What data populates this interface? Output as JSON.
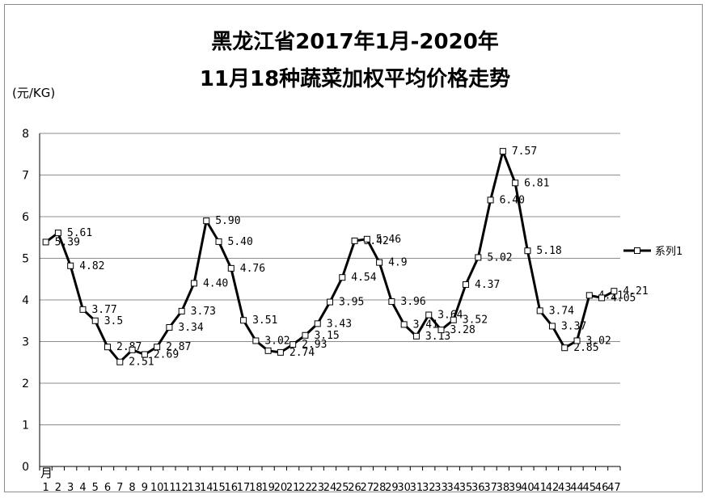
{
  "chart_data": {
    "type": "line",
    "title_line1": "黑龙江省2017年1月-2020年",
    "title_line2": "11月18种蔬菜加权平均价格走势",
    "ylabel": "(元/KG)",
    "xlabel": "月",
    "ylim": [
      0,
      8
    ],
    "yticks": [
      0,
      1,
      2,
      3,
      4,
      5,
      6,
      7,
      8
    ],
    "grid": "horizontal",
    "legend_position": "right",
    "line_color": "#000000",
    "marker_fill": "#ffffff",
    "categories": [
      "1",
      "2",
      "3",
      "4",
      "5",
      "6",
      "7",
      "8",
      "9",
      "10",
      "11",
      "12",
      "13",
      "14",
      "15",
      "16",
      "17",
      "18",
      "19",
      "20",
      "21",
      "22",
      "23",
      "24",
      "25",
      "26",
      "27",
      "28",
      "29",
      "30",
      "31",
      "32",
      "33",
      "34",
      "35",
      "36",
      "37",
      "38",
      "39",
      "40",
      "41",
      "42",
      "43",
      "44",
      "45",
      "46",
      "47"
    ],
    "series": [
      {
        "name": "系列1",
        "values": [
          5.39,
          5.61,
          4.82,
          3.77,
          3.5,
          2.87,
          2.51,
          2.8,
          2.69,
          2.87,
          3.34,
          3.73,
          4.4,
          5.9,
          5.4,
          4.76,
          3.51,
          3.02,
          2.78,
          2.74,
          2.93,
          3.15,
          3.43,
          3.95,
          4.54,
          5.42,
          5.46,
          4.9,
          3.96,
          3.41,
          3.13,
          3.64,
          3.28,
          3.52,
          4.37,
          5.02,
          6.4,
          7.57,
          6.81,
          5.18,
          3.74,
          3.37,
          2.85,
          3.02,
          4.11,
          4.05,
          4.21
        ]
      }
    ],
    "data_labels": [
      "5.39",
      "5.61",
      "4.82",
      "3.77",
      "3.5",
      "2.87",
      "2.51",
      "",
      "2.69",
      "2.87",
      "3.34",
      "3.73",
      "4.40",
      "5.90",
      "5.40",
      "4.76",
      "3.51",
      "3.02",
      "",
      "2.74",
      "2.93",
      "3.15",
      "3.43",
      "3.95",
      "4.54",
      "5.42",
      "5.46",
      "4.9",
      "3.96",
      "3.41",
      "3.13",
      "3.64",
      "3.28",
      "3.52",
      "4.37",
      "5.02",
      "6.40",
      "7.57",
      "6.81",
      "5.18",
      "3.74",
      "3.37",
      "2.85",
      "3.02",
      "4.11",
      "4.05",
      "4.21"
    ]
  }
}
